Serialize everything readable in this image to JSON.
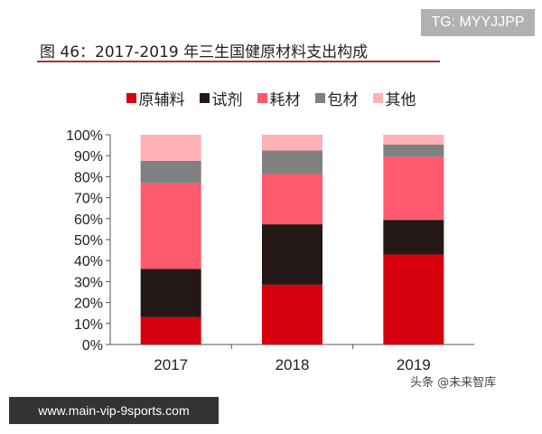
{
  "watermark_top": "TG: MYYJJPP",
  "watermark_bottom": "www.main-vip-9sports.com",
  "watermark_source": "头条 @未来智库",
  "chart_data": {
    "type": "bar",
    "stacked": true,
    "title": "图 46：2017-2019 年三生国健原材料支出构成",
    "categories": [
      "2017",
      "2018",
      "2019"
    ],
    "series": [
      {
        "name": "原辅料",
        "color": "#d7000f",
        "values": [
          13.0,
          28.5,
          42.9
        ]
      },
      {
        "name": "试剂",
        "color": "#231815",
        "values": [
          23.0,
          28.8,
          16.5
        ]
      },
      {
        "name": "耗材",
        "color": "#ff5a6e",
        "values": [
          40.8,
          23.9,
          30.1
        ]
      },
      {
        "name": "包材",
        "color": "#808080",
        "values": [
          10.7,
          11.3,
          5.8
        ]
      },
      {
        "name": "其他",
        "color": "#ffb1b6",
        "values": [
          12.5,
          7.5,
          4.7
        ]
      }
    ],
    "yticks": [
      "0%",
      "10%",
      "20%",
      "30%",
      "40%",
      "50%",
      "60%",
      "70%",
      "80%",
      "90%",
      "100%"
    ],
    "ylim": [
      0,
      100
    ],
    "grid": false,
    "legend_position": "top"
  }
}
